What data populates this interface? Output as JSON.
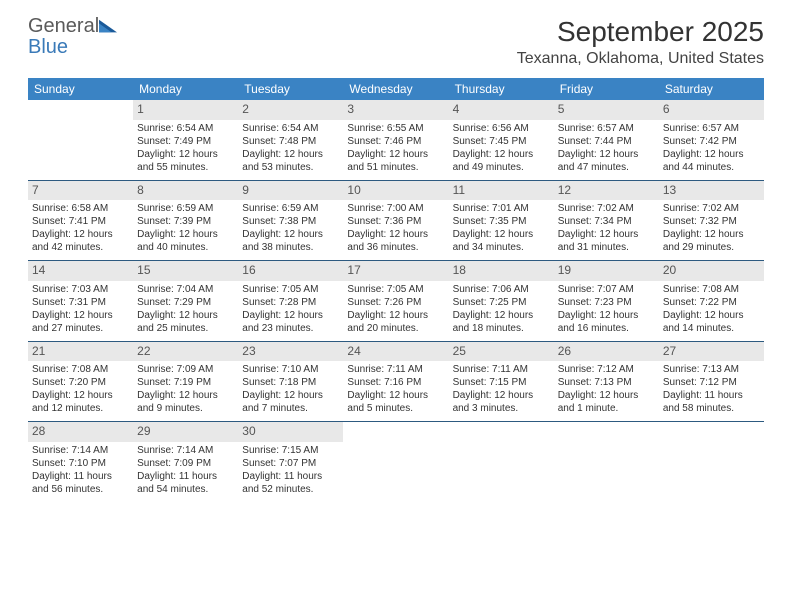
{
  "logo": {
    "line1": "General",
    "line2": "Blue"
  },
  "title": "September 2025",
  "location": "Texanna, Oklahoma, United States",
  "colors": {
    "header_bg": "#3a83c4",
    "week_border": "#2d5a80",
    "shaded": "#e8e8e8",
    "logo_gray": "#5a5a5a",
    "logo_blue": "#3a7ab8"
  },
  "dayNames": [
    "Sunday",
    "Monday",
    "Tuesday",
    "Wednesday",
    "Thursday",
    "Friday",
    "Saturday"
  ],
  "weeks": [
    [
      {
        "day": "",
        "sunrise": "",
        "sunset": "",
        "daylight": ""
      },
      {
        "day": "1",
        "sunrise": "Sunrise: 6:54 AM",
        "sunset": "Sunset: 7:49 PM",
        "daylight": "Daylight: 12 hours and 55 minutes."
      },
      {
        "day": "2",
        "sunrise": "Sunrise: 6:54 AM",
        "sunset": "Sunset: 7:48 PM",
        "daylight": "Daylight: 12 hours and 53 minutes."
      },
      {
        "day": "3",
        "sunrise": "Sunrise: 6:55 AM",
        "sunset": "Sunset: 7:46 PM",
        "daylight": "Daylight: 12 hours and 51 minutes."
      },
      {
        "day": "4",
        "sunrise": "Sunrise: 6:56 AM",
        "sunset": "Sunset: 7:45 PM",
        "daylight": "Daylight: 12 hours and 49 minutes."
      },
      {
        "day": "5",
        "sunrise": "Sunrise: 6:57 AM",
        "sunset": "Sunset: 7:44 PM",
        "daylight": "Daylight: 12 hours and 47 minutes."
      },
      {
        "day": "6",
        "sunrise": "Sunrise: 6:57 AM",
        "sunset": "Sunset: 7:42 PM",
        "daylight": "Daylight: 12 hours and 44 minutes."
      }
    ],
    [
      {
        "day": "7",
        "sunrise": "Sunrise: 6:58 AM",
        "sunset": "Sunset: 7:41 PM",
        "daylight": "Daylight: 12 hours and 42 minutes."
      },
      {
        "day": "8",
        "sunrise": "Sunrise: 6:59 AM",
        "sunset": "Sunset: 7:39 PM",
        "daylight": "Daylight: 12 hours and 40 minutes."
      },
      {
        "day": "9",
        "sunrise": "Sunrise: 6:59 AM",
        "sunset": "Sunset: 7:38 PM",
        "daylight": "Daylight: 12 hours and 38 minutes."
      },
      {
        "day": "10",
        "sunrise": "Sunrise: 7:00 AM",
        "sunset": "Sunset: 7:36 PM",
        "daylight": "Daylight: 12 hours and 36 minutes."
      },
      {
        "day": "11",
        "sunrise": "Sunrise: 7:01 AM",
        "sunset": "Sunset: 7:35 PM",
        "daylight": "Daylight: 12 hours and 34 minutes."
      },
      {
        "day": "12",
        "sunrise": "Sunrise: 7:02 AM",
        "sunset": "Sunset: 7:34 PM",
        "daylight": "Daylight: 12 hours and 31 minutes."
      },
      {
        "day": "13",
        "sunrise": "Sunrise: 7:02 AM",
        "sunset": "Sunset: 7:32 PM",
        "daylight": "Daylight: 12 hours and 29 minutes."
      }
    ],
    [
      {
        "day": "14",
        "sunrise": "Sunrise: 7:03 AM",
        "sunset": "Sunset: 7:31 PM",
        "daylight": "Daylight: 12 hours and 27 minutes."
      },
      {
        "day": "15",
        "sunrise": "Sunrise: 7:04 AM",
        "sunset": "Sunset: 7:29 PM",
        "daylight": "Daylight: 12 hours and 25 minutes."
      },
      {
        "day": "16",
        "sunrise": "Sunrise: 7:05 AM",
        "sunset": "Sunset: 7:28 PM",
        "daylight": "Daylight: 12 hours and 23 minutes."
      },
      {
        "day": "17",
        "sunrise": "Sunrise: 7:05 AM",
        "sunset": "Sunset: 7:26 PM",
        "daylight": "Daylight: 12 hours and 20 minutes."
      },
      {
        "day": "18",
        "sunrise": "Sunrise: 7:06 AM",
        "sunset": "Sunset: 7:25 PM",
        "daylight": "Daylight: 12 hours and 18 minutes."
      },
      {
        "day": "19",
        "sunrise": "Sunrise: 7:07 AM",
        "sunset": "Sunset: 7:23 PM",
        "daylight": "Daylight: 12 hours and 16 minutes."
      },
      {
        "day": "20",
        "sunrise": "Sunrise: 7:08 AM",
        "sunset": "Sunset: 7:22 PM",
        "daylight": "Daylight: 12 hours and 14 minutes."
      }
    ],
    [
      {
        "day": "21",
        "sunrise": "Sunrise: 7:08 AM",
        "sunset": "Sunset: 7:20 PM",
        "daylight": "Daylight: 12 hours and 12 minutes."
      },
      {
        "day": "22",
        "sunrise": "Sunrise: 7:09 AM",
        "sunset": "Sunset: 7:19 PM",
        "daylight": "Daylight: 12 hours and 9 minutes."
      },
      {
        "day": "23",
        "sunrise": "Sunrise: 7:10 AM",
        "sunset": "Sunset: 7:18 PM",
        "daylight": "Daylight: 12 hours and 7 minutes."
      },
      {
        "day": "24",
        "sunrise": "Sunrise: 7:11 AM",
        "sunset": "Sunset: 7:16 PM",
        "daylight": "Daylight: 12 hours and 5 minutes."
      },
      {
        "day": "25",
        "sunrise": "Sunrise: 7:11 AM",
        "sunset": "Sunset: 7:15 PM",
        "daylight": "Daylight: 12 hours and 3 minutes."
      },
      {
        "day": "26",
        "sunrise": "Sunrise: 7:12 AM",
        "sunset": "Sunset: 7:13 PM",
        "daylight": "Daylight: 12 hours and 1 minute."
      },
      {
        "day": "27",
        "sunrise": "Sunrise: 7:13 AM",
        "sunset": "Sunset: 7:12 PM",
        "daylight": "Daylight: 11 hours and 58 minutes."
      }
    ],
    [
      {
        "day": "28",
        "sunrise": "Sunrise: 7:14 AM",
        "sunset": "Sunset: 7:10 PM",
        "daylight": "Daylight: 11 hours and 56 minutes."
      },
      {
        "day": "29",
        "sunrise": "Sunrise: 7:14 AM",
        "sunset": "Sunset: 7:09 PM",
        "daylight": "Daylight: 11 hours and 54 minutes."
      },
      {
        "day": "30",
        "sunrise": "Sunrise: 7:15 AM",
        "sunset": "Sunset: 7:07 PM",
        "daylight": "Daylight: 11 hours and 52 minutes."
      },
      {
        "day": "",
        "sunrise": "",
        "sunset": "",
        "daylight": ""
      },
      {
        "day": "",
        "sunrise": "",
        "sunset": "",
        "daylight": ""
      },
      {
        "day": "",
        "sunrise": "",
        "sunset": "",
        "daylight": ""
      },
      {
        "day": "",
        "sunrise": "",
        "sunset": "",
        "daylight": ""
      }
    ]
  ]
}
